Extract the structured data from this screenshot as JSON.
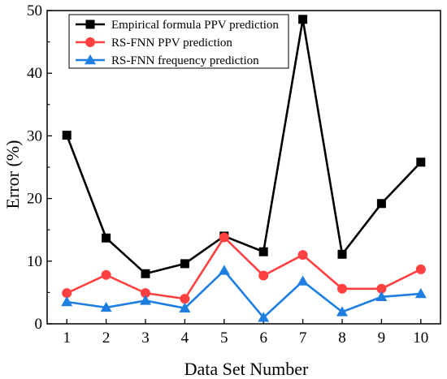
{
  "chart_data": {
    "type": "line",
    "xlabel": "Data Set Number",
    "ylabel": "Error (%)",
    "xlim": [
      0.5,
      10.5
    ],
    "ylim": [
      0,
      50
    ],
    "x": [
      1,
      2,
      3,
      4,
      5,
      6,
      7,
      8,
      9,
      10
    ],
    "xticks": [
      "1",
      "2",
      "3",
      "4",
      "5",
      "6",
      "7",
      "8",
      "9",
      "10"
    ],
    "yticks": [
      "0",
      "10",
      "20",
      "30",
      "40",
      "50"
    ],
    "ytick_values": [
      0,
      10,
      20,
      30,
      40,
      50
    ],
    "grid": false,
    "legend_position": "top-left",
    "series": [
      {
        "name": "Empirical formula PPV prediction",
        "color": "#000000",
        "marker": "square",
        "values": [
          30.1,
          13.7,
          8.0,
          9.6,
          14.0,
          11.5,
          48.6,
          11.1,
          19.2,
          25.8
        ]
      },
      {
        "name": "RS-FNN PPV prediction",
        "color": "#ff4040",
        "marker": "circle",
        "values": [
          4.9,
          7.8,
          4.9,
          4.0,
          13.8,
          7.7,
          11.0,
          5.6,
          5.6,
          8.7
        ]
      },
      {
        "name": "RS-FNN frequency prediction",
        "color": "#1e7fe0",
        "marker": "triangle",
        "values": [
          3.5,
          2.6,
          3.7,
          2.5,
          8.5,
          1.0,
          6.8,
          1.9,
          4.3,
          4.8
        ]
      }
    ]
  }
}
